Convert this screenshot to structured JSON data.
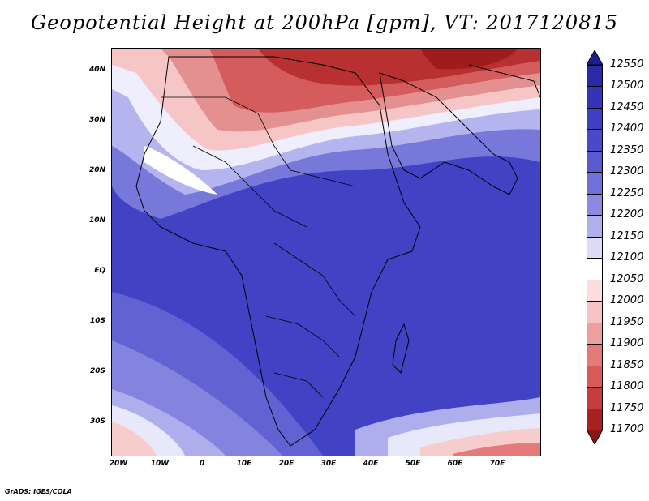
{
  "title": "Geopotential Height at 200hPa [gpm], VT: 2017120815",
  "credit": "GrADS: IGES/COLA",
  "lat_labels": [
    "40N",
    "30N",
    "20N",
    "10N",
    "EQ",
    "10S",
    "20S",
    "30S"
  ],
  "lon_labels": [
    "20W",
    "10W",
    "0",
    "10E",
    "20E",
    "30E",
    "40E",
    "50E",
    "60E",
    "70E"
  ],
  "colorbar": {
    "levels": [
      "12550",
      "12500",
      "12450",
      "12400",
      "12350",
      "12300",
      "12250",
      "12200",
      "12150",
      "12100",
      "12050",
      "12000",
      "11950",
      "11900",
      "11850",
      "11800",
      "11750",
      "11700"
    ],
    "colors": [
      "#1e1e8c",
      "#2a2aa8",
      "#3434b8",
      "#3e3ec2",
      "#4a4ac8",
      "#5a5ad0",
      "#7070d8",
      "#8a8ae2",
      "#b0b0ee",
      "#dcdcf8",
      "#ffffff",
      "#fcdede",
      "#f6c4c4",
      "#eea0a0",
      "#e47a7a",
      "#d85a5a",
      "#c83c3c",
      "#a82020",
      "#901414"
    ]
  }
}
